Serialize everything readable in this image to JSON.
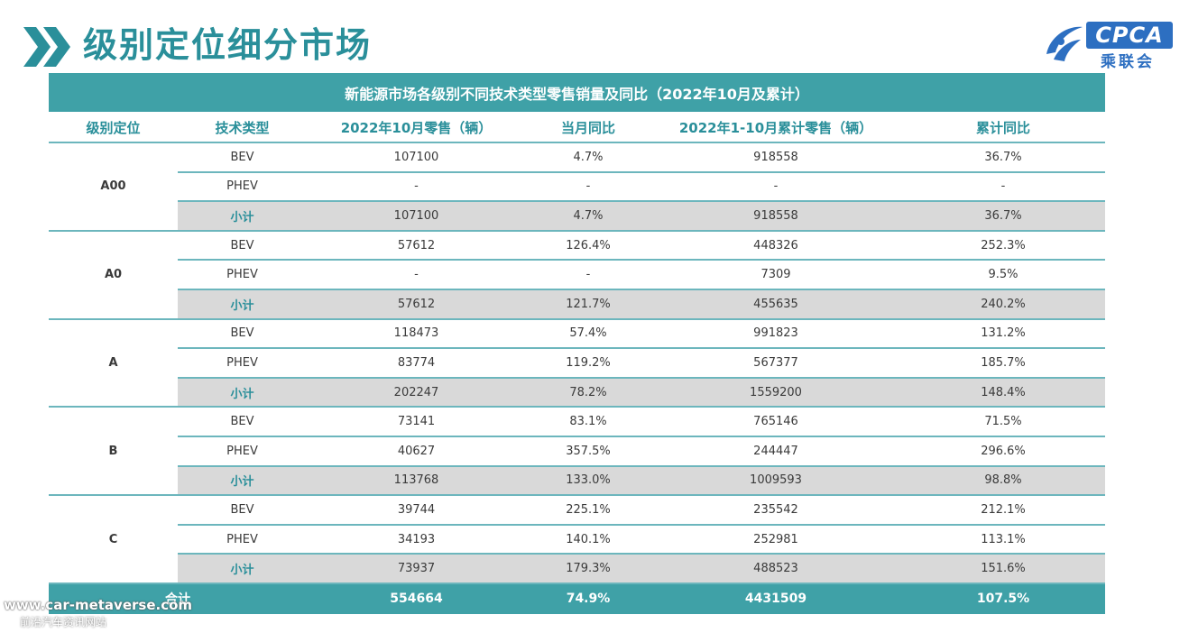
{
  "page": {
    "title": "级别定位细分市场"
  },
  "logo": {
    "main": "CPCA",
    "sub": "乘联会",
    "swirl_text": "CPCA"
  },
  "table": {
    "caption": "新能源市场各级别不同技术类型零售销量及同比（2022年10月及累计）",
    "headers": [
      "级别定位",
      "技术类型",
      "2022年10月零售（辆）",
      "当月同比",
      "2022年1-10月累计零售（辆）",
      "累计同比"
    ],
    "groups": [
      {
        "grade": "A00",
        "rows": [
          {
            "tech": "BEV",
            "oct": "107100",
            "oct_yoy": "4.7%",
            "cum": "918558",
            "cum_yoy": "36.7%"
          },
          {
            "tech": "PHEV",
            "oct": "-",
            "oct_yoy": "-",
            "cum": "-",
            "cum_yoy": "-"
          },
          {
            "tech": "小计",
            "oct": "107100",
            "oct_yoy": "4.7%",
            "cum": "918558",
            "cum_yoy": "36.7%"
          }
        ]
      },
      {
        "grade": "A0",
        "rows": [
          {
            "tech": "BEV",
            "oct": "57612",
            "oct_yoy": "126.4%",
            "cum": "448326",
            "cum_yoy": "252.3%"
          },
          {
            "tech": "PHEV",
            "oct": "-",
            "oct_yoy": "-",
            "cum": "7309",
            "cum_yoy": "9.5%"
          },
          {
            "tech": "小计",
            "oct": "57612",
            "oct_yoy": "121.7%",
            "cum": "455635",
            "cum_yoy": "240.2%"
          }
        ]
      },
      {
        "grade": "A",
        "rows": [
          {
            "tech": "BEV",
            "oct": "118473",
            "oct_yoy": "57.4%",
            "cum": "991823",
            "cum_yoy": "131.2%"
          },
          {
            "tech": "PHEV",
            "oct": "83774",
            "oct_yoy": "119.2%",
            "cum": "567377",
            "cum_yoy": "185.7%"
          },
          {
            "tech": "小计",
            "oct": "202247",
            "oct_yoy": "78.2%",
            "cum": "1559200",
            "cum_yoy": "148.4%"
          }
        ]
      },
      {
        "grade": "B",
        "rows": [
          {
            "tech": "BEV",
            "oct": "73141",
            "oct_yoy": "83.1%",
            "cum": "765146",
            "cum_yoy": "71.5%"
          },
          {
            "tech": "PHEV",
            "oct": "40627",
            "oct_yoy": "357.5%",
            "cum": "244447",
            "cum_yoy": "296.6%"
          },
          {
            "tech": "小计",
            "oct": "113768",
            "oct_yoy": "133.0%",
            "cum": "1009593",
            "cum_yoy": "98.8%"
          }
        ]
      },
      {
        "grade": "C",
        "rows": [
          {
            "tech": "BEV",
            "oct": "39744",
            "oct_yoy": "225.1%",
            "cum": "235542",
            "cum_yoy": "212.1%"
          },
          {
            "tech": "PHEV",
            "oct": "34193",
            "oct_yoy": "140.1%",
            "cum": "252981",
            "cum_yoy": "113.1%"
          },
          {
            "tech": "小计",
            "oct": "73937",
            "oct_yoy": "179.3%",
            "cum": "488523",
            "cum_yoy": "151.6%"
          }
        ]
      }
    ],
    "total": {
      "label": "合计",
      "oct": "554664",
      "oct_yoy": "74.9%",
      "cum": "4431509",
      "cum_yoy": "107.5%"
    }
  },
  "watermark": {
    "site": "www.car-metaverse.com",
    "slogan": "前沿汽车资讯网站"
  },
  "colors": {
    "teal": "#3fa1a7",
    "title_teal": "#2a8f9a",
    "subtotal_gray": "#d9d9d9",
    "logo_blue": "#2d6fc1"
  }
}
